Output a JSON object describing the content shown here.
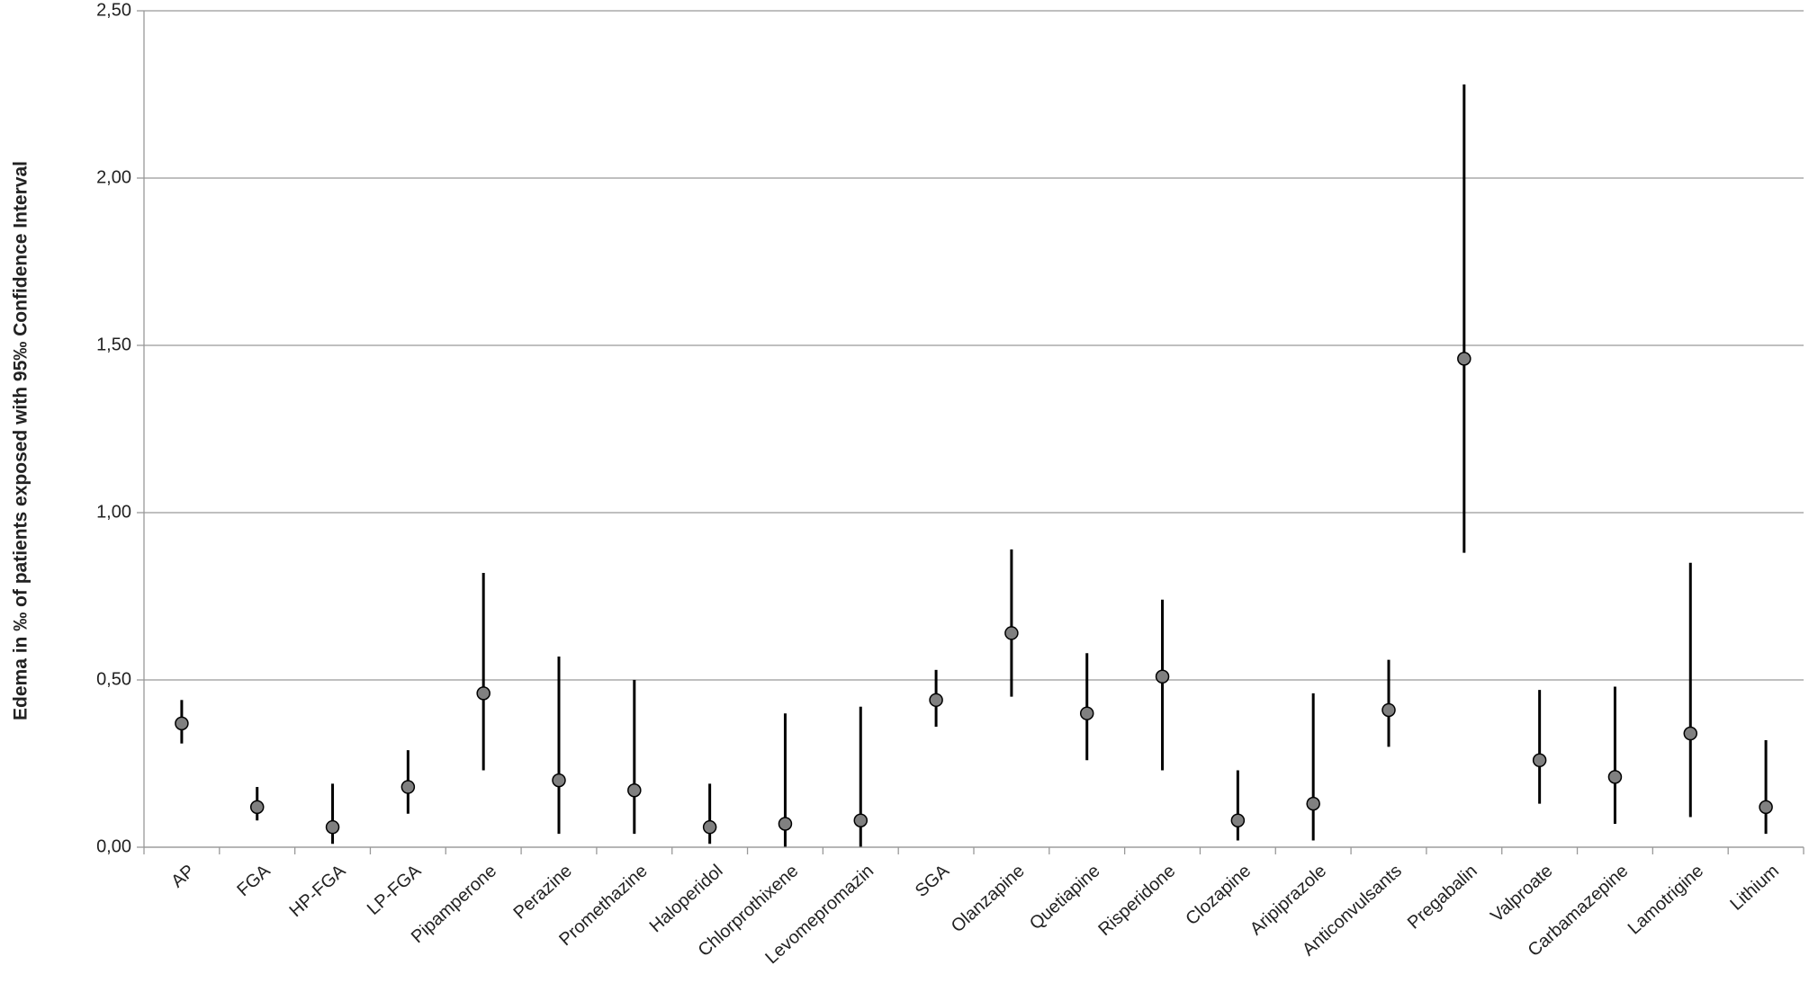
{
  "chart_data": {
    "type": "errorbar",
    "y_label": "Edema  in ‰ of patients exposed with 95‰ Confidence Interval",
    "categories": [
      "AP",
      "FGA",
      "HP-FGA",
      "LP-FGA",
      "Pipamperone",
      "Perazine",
      "Promethazine",
      "Haloperidol",
      "Chlorprothixene",
      "Levomepromazin",
      "SGA",
      "Olanzapine",
      "Quetiapine",
      "Risperidone",
      "Clozapine",
      "Aripiprazole",
      "Anticonvulsants",
      "Pregabalin",
      "Valproate",
      "Carbamazepine",
      "Lamotrigine",
      "Lithium"
    ],
    "values": [
      0.37,
      0.12,
      0.06,
      0.18,
      0.46,
      0.2,
      0.17,
      0.06,
      0.07,
      0.08,
      0.44,
      0.64,
      0.4,
      0.51,
      0.08,
      0.13,
      0.41,
      1.46,
      0.26,
      0.21,
      0.34,
      0.12
    ],
    "lower": [
      0.31,
      0.08,
      0.01,
      0.1,
      0.23,
      0.04,
      0.04,
      0.01,
      0.0,
      0.0,
      0.36,
      0.45,
      0.26,
      0.23,
      0.02,
      0.02,
      0.3,
      0.88,
      0.13,
      0.07,
      0.09,
      0.04
    ],
    "upper": [
      0.44,
      0.18,
      0.19,
      0.29,
      0.82,
      0.57,
      0.5,
      0.19,
      0.4,
      0.42,
      0.53,
      0.89,
      0.58,
      0.74,
      0.23,
      0.46,
      0.56,
      2.28,
      0.47,
      0.48,
      0.85,
      0.32
    ],
    "color": "#808080",
    "ylim": [
      0,
      2.5
    ],
    "yticks": [
      {
        "value": 0,
        "label": "0,00"
      },
      {
        "value": 0.5,
        "label": "0,50"
      },
      {
        "value": 1,
        "label": "1,00"
      },
      {
        "value": 1.5,
        "label": "1,50"
      },
      {
        "value": 2,
        "label": "2,00"
      },
      {
        "value": 2.5,
        "label": "2,50"
      }
    ],
    "grid": true
  }
}
